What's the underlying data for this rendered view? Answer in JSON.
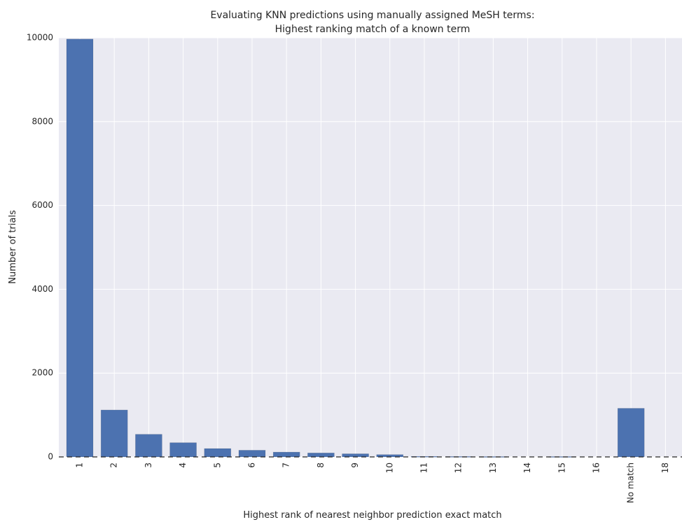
{
  "chart_data": {
    "type": "bar",
    "title": [
      "Evaluating KNN predictions using manually assigned MeSH terms:",
      "Highest ranking match of a known term"
    ],
    "xlabel": "Highest rank of nearest neighbor prediction exact match",
    "ylabel": "Number of trials",
    "ylim": [
      0,
      10000
    ],
    "yticks": [
      0,
      2000,
      4000,
      6000,
      8000,
      10000
    ],
    "categories": [
      "1",
      "2",
      "3",
      "4",
      "5",
      "6",
      "7",
      "8",
      "9",
      "10",
      "11",
      "12",
      "13",
      "14",
      "15",
      "16",
      "No match",
      "18"
    ],
    "values": [
      9970,
      1120,
      540,
      340,
      200,
      160,
      115,
      95,
      75,
      55,
      12,
      10,
      8,
      0,
      8,
      0,
      1160,
      0
    ],
    "bar_color": "#4c72b0",
    "background_color": "#eaeaf2",
    "grid": true,
    "baseline_dashed": true
  }
}
